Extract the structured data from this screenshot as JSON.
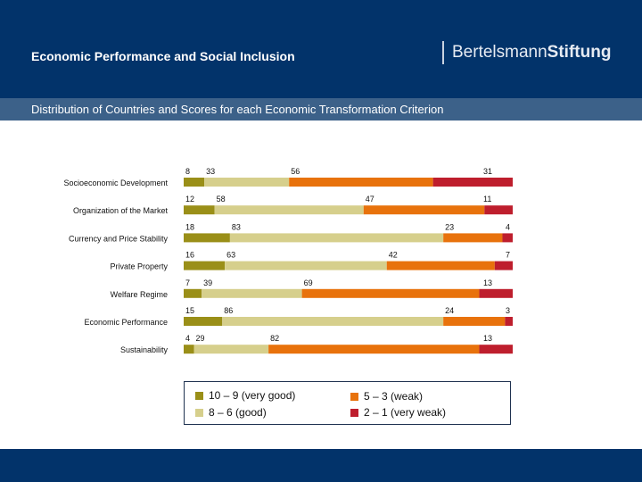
{
  "header": {
    "title": "Economic Performance and Social Inclusion",
    "logo_text_1": "Bertelsmann",
    "logo_text_2": "Stiftung",
    "subtitle": "Distribution of Countries and Scores for each Economic Transformation Criterion"
  },
  "chart_data": {
    "type": "bar",
    "orientation": "horizontal",
    "stacked": true,
    "normalized": true,
    "categories": [
      "Socioeconomic Development",
      "Organization of the Market",
      "Currency and Price Stability",
      "Private Property",
      "Welfare Regime",
      "Economic Performance",
      "Sustainability"
    ],
    "series": [
      {
        "name": "10 – 9 (very good)",
        "color": "#9a8f18",
        "values": [
          8,
          12,
          18,
          16,
          7,
          15,
          4
        ]
      },
      {
        "name": "8 – 6 (good)",
        "color": "#d6cf8c",
        "values": [
          33,
          58,
          83,
          63,
          39,
          86,
          29
        ]
      },
      {
        "name": "5 – 3 (weak)",
        "color": "#e8720c",
        "values": [
          56,
          47,
          23,
          42,
          69,
          24,
          82
        ]
      },
      {
        "name": "2 – 1 (very weak)",
        "color": "#be1e2d",
        "values": [
          31,
          11,
          4,
          7,
          13,
          3,
          13
        ]
      }
    ],
    "legend_position": "bottom",
    "grid": false
  }
}
